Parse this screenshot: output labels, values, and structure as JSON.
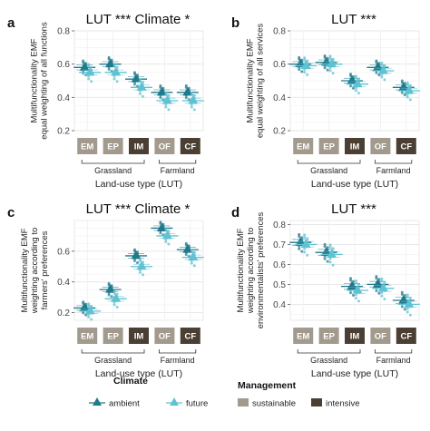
{
  "colors": {
    "ambient": "#1f7a8c",
    "future": "#5fc2d3",
    "sustainable": "#a39a8e",
    "intensive": "#4a3f32",
    "grid": "#e6e6e6",
    "panel_bg": "#ffffff"
  },
  "legend": {
    "climate_title": "Climate",
    "climate_items": [
      "ambient",
      "future"
    ],
    "management_title": "Management",
    "management_items": [
      "sustainable",
      "intensive"
    ]
  },
  "chart_data": [
    {
      "panel": "a",
      "type": "scatter",
      "title": "LUT *** Climate *",
      "ylabel": "Multifunctionality EMF\nequal weighting of all functions",
      "xlabel": "Land-use type (LUT)",
      "categories": [
        "EM",
        "EP",
        "IM",
        "OF",
        "CF"
      ],
      "management": [
        "sustainable",
        "sustainable",
        "intensive",
        "sustainable",
        "intensive"
      ],
      "groups": [
        {
          "label": "Grassland",
          "from": 0,
          "to": 2
        },
        {
          "label": "Farmland",
          "from": 3,
          "to": 4
        }
      ],
      "ylim": [
        0.2,
        0.8
      ],
      "yticks": [
        0.2,
        0.4,
        0.6,
        0.8
      ],
      "series": [
        {
          "name": "ambient",
          "values": [
            0.58,
            0.6,
            0.51,
            0.43,
            0.43
          ]
        },
        {
          "name": "future",
          "values": [
            0.55,
            0.55,
            0.46,
            0.38,
            0.38
          ]
        }
      ]
    },
    {
      "panel": "b",
      "type": "scatter",
      "title": "LUT ***",
      "ylabel": "Multifunctionality EMF\nequal weighting of all services",
      "xlabel": "Land-use type (LUT)",
      "categories": [
        "EM",
        "EP",
        "IM",
        "OF",
        "CF"
      ],
      "management": [
        "sustainable",
        "sustainable",
        "intensive",
        "sustainable",
        "intensive"
      ],
      "groups": [
        {
          "label": "Grassland",
          "from": 0,
          "to": 2
        },
        {
          "label": "Farmland",
          "from": 3,
          "to": 4
        }
      ],
      "ylim": [
        0.2,
        0.8
      ],
      "yticks": [
        0.2,
        0.4,
        0.6,
        0.8
      ],
      "series": [
        {
          "name": "ambient",
          "values": [
            0.6,
            0.61,
            0.5,
            0.58,
            0.46
          ]
        },
        {
          "name": "future",
          "values": [
            0.59,
            0.6,
            0.48,
            0.56,
            0.44
          ]
        }
      ]
    },
    {
      "panel": "c",
      "type": "scatter",
      "title": "LUT *** Climate *",
      "ylabel": "Multifunctionality EMF\nweighting according to\nfarmers' preferences",
      "xlabel": "Land-use type (LUT)",
      "categories": [
        "EM",
        "EP",
        "IM",
        "OF",
        "CF"
      ],
      "management": [
        "sustainable",
        "sustainable",
        "intensive",
        "sustainable",
        "intensive"
      ],
      "groups": [
        {
          "label": "Grassland",
          "from": 0,
          "to": 2
        },
        {
          "label": "Farmland",
          "from": 3,
          "to": 4
        }
      ],
      "ylim": [
        0.15,
        0.8
      ],
      "yticks": [
        0.2,
        0.4,
        0.6
      ],
      "series": [
        {
          "name": "ambient",
          "values": [
            0.23,
            0.35,
            0.57,
            0.75,
            0.61
          ]
        },
        {
          "name": "future",
          "values": [
            0.21,
            0.29,
            0.5,
            0.7,
            0.56
          ]
        }
      ]
    },
    {
      "panel": "d",
      "type": "scatter",
      "title": "LUT ***",
      "ylabel": "Multifunctionality EMF\nweighting according to\nenvironmentalists' preferences",
      "xlabel": "Land-use type (LUT)",
      "categories": [
        "EM",
        "EP",
        "IM",
        "OF",
        "CF"
      ],
      "management": [
        "sustainable",
        "sustainable",
        "intensive",
        "sustainable",
        "intensive"
      ],
      "groups": [
        {
          "label": "Grassland",
          "from": 0,
          "to": 2
        },
        {
          "label": "Farmland",
          "from": 3,
          "to": 4
        }
      ],
      "ylim": [
        0.32,
        0.82
      ],
      "yticks": [
        0.4,
        0.5,
        0.6,
        0.7,
        0.8
      ],
      "series": [
        {
          "name": "ambient",
          "values": [
            0.71,
            0.66,
            0.49,
            0.5,
            0.42
          ]
        },
        {
          "name": "future",
          "values": [
            0.7,
            0.65,
            0.47,
            0.48,
            0.4
          ]
        }
      ]
    }
  ]
}
